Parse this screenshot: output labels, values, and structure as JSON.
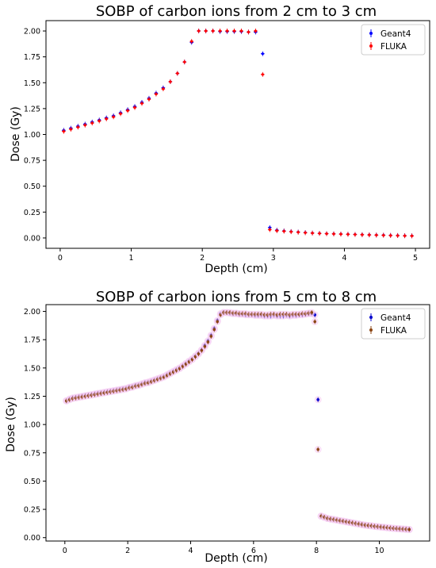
{
  "chart_data": [
    {
      "type": "scatter",
      "title": "SOBP of carbon ions from 2 cm to 3 cm",
      "xlabel": "Depth (cm)",
      "ylabel": "Dose (Gy)",
      "xlim": [
        -0.2,
        5.2
      ],
      "ylim": [
        -0.1,
        2.1
      ],
      "xticks": [
        "0",
        "1",
        "2",
        "3",
        "4",
        "5"
      ],
      "yticks": [
        "0.00",
        "0.25",
        "0.50",
        "0.75",
        "1.00",
        "1.25",
        "1.50",
        "1.75",
        "2.00"
      ],
      "legend_position": "top-right",
      "grid": false,
      "series": [
        {
          "name": "Geant4",
          "color": "#0000ff",
          "x": [
            0.05,
            0.15,
            0.25,
            0.35,
            0.45,
            0.55,
            0.65,
            0.75,
            0.85,
            0.95,
            1.05,
            1.15,
            1.25,
            1.35,
            1.45,
            1.55,
            1.65,
            1.75,
            1.85,
            1.95,
            2.05,
            2.15,
            2.25,
            2.35,
            2.45,
            2.55,
            2.65,
            2.75,
            2.85,
            2.95,
            3.05,
            3.15,
            3.25,
            3.35,
            3.45,
            3.55,
            3.65,
            3.75,
            3.85,
            3.95,
            4.05,
            4.15,
            4.25,
            4.35,
            4.45,
            4.55,
            4.65,
            4.75,
            4.85,
            4.95
          ],
          "y": [
            1.04,
            1.06,
            1.08,
            1.1,
            1.12,
            1.14,
            1.16,
            1.18,
            1.21,
            1.24,
            1.27,
            1.31,
            1.35,
            1.4,
            1.45,
            1.51,
            1.59,
            1.7,
            1.89,
            2.0,
            2.0,
            2.0,
            1.995,
            1.995,
            1.995,
            1.995,
            1.99,
            1.99,
            1.78,
            0.1,
            0.075,
            0.068,
            0.062,
            0.057,
            0.052,
            0.048,
            0.045,
            0.042,
            0.04,
            0.038,
            0.036,
            0.034,
            0.032,
            0.03,
            0.028,
            0.027,
            0.025,
            0.024,
            0.022,
            0.021
          ]
        },
        {
          "name": "FLUKA",
          "color": "#ff0000",
          "x": [
            0.05,
            0.15,
            0.25,
            0.35,
            0.45,
            0.55,
            0.65,
            0.75,
            0.85,
            0.95,
            1.05,
            1.15,
            1.25,
            1.35,
            1.45,
            1.55,
            1.65,
            1.75,
            1.85,
            1.95,
            2.05,
            2.15,
            2.25,
            2.35,
            2.45,
            2.55,
            2.65,
            2.75,
            2.85,
            2.95,
            3.05,
            3.15,
            3.25,
            3.35,
            3.45,
            3.55,
            3.65,
            3.75,
            3.85,
            3.95,
            4.05,
            4.15,
            4.25,
            4.35,
            4.45,
            4.55,
            4.65,
            4.75,
            4.85,
            4.95
          ],
          "y": [
            1.03,
            1.05,
            1.07,
            1.09,
            1.11,
            1.13,
            1.15,
            1.17,
            1.2,
            1.23,
            1.26,
            1.3,
            1.34,
            1.39,
            1.44,
            1.51,
            1.59,
            1.7,
            1.9,
            2.0,
            2.0,
            2.0,
            2.0,
            2.0,
            2.0,
            2.0,
            1.99,
            2.0,
            1.58,
            0.08,
            0.07,
            0.065,
            0.06,
            0.055,
            0.05,
            0.047,
            0.044,
            0.041,
            0.039,
            0.037,
            0.035,
            0.033,
            0.031,
            0.029,
            0.027,
            0.026,
            0.024,
            0.023,
            0.021,
            0.02
          ]
        }
      ]
    },
    {
      "type": "scatter",
      "title": "SOBP of carbon ions from 5 cm to 8 cm",
      "xlabel": "Depth (cm)",
      "ylabel": "Dose (Gy)",
      "xlim": [
        -0.6,
        11.6
      ],
      "ylim": [
        -0.03,
        2.06
      ],
      "xticks": [
        "0",
        "2",
        "4",
        "6",
        "8",
        "10"
      ],
      "yticks": [
        "0.00",
        "0.25",
        "0.50",
        "0.75",
        "1.00",
        "1.25",
        "1.50",
        "1.75",
        "2.00"
      ],
      "legend_position": "top-right",
      "grid": false,
      "series": [
        {
          "name": "Geant4",
          "color": "#0000cc",
          "x": [
            0.05,
            0.15,
            0.25,
            0.35,
            0.45,
            0.55,
            0.65,
            0.75,
            0.85,
            0.95,
            1.05,
            1.15,
            1.25,
            1.35,
            1.45,
            1.55,
            1.65,
            1.75,
            1.85,
            1.95,
            2.05,
            2.15,
            2.25,
            2.35,
            2.45,
            2.55,
            2.65,
            2.75,
            2.85,
            2.95,
            3.05,
            3.15,
            3.25,
            3.35,
            3.45,
            3.55,
            3.65,
            3.75,
            3.85,
            3.95,
            4.05,
            4.15,
            4.25,
            4.35,
            4.45,
            4.55,
            4.65,
            4.75,
            4.85,
            4.95,
            5.05,
            5.15,
            5.25,
            5.35,
            5.45,
            5.55,
            5.65,
            5.75,
            5.85,
            5.95,
            6.05,
            6.15,
            6.25,
            6.35,
            6.45,
            6.55,
            6.65,
            6.75,
            6.85,
            6.95,
            7.05,
            7.15,
            7.25,
            7.35,
            7.45,
            7.55,
            7.65,
            7.75,
            7.85,
            7.95,
            8.05,
            8.15,
            8.25,
            8.35,
            8.45,
            8.55,
            8.65,
            8.75,
            8.85,
            8.95,
            9.05,
            9.15,
            9.25,
            9.35,
            9.45,
            9.55,
            9.65,
            9.75,
            9.85,
            9.95,
            10.05,
            10.15,
            10.25,
            10.35,
            10.45,
            10.55,
            10.65,
            10.75,
            10.85,
            10.95
          ],
          "y": [
            1.21,
            1.225,
            1.235,
            1.24,
            1.245,
            1.25,
            1.255,
            1.26,
            1.265,
            1.27,
            1.275,
            1.28,
            1.285,
            1.29,
            1.295,
            1.3,
            1.305,
            1.31,
            1.315,
            1.32,
            1.33,
            1.335,
            1.345,
            1.35,
            1.36,
            1.37,
            1.375,
            1.385,
            1.395,
            1.405,
            1.415,
            1.425,
            1.44,
            1.455,
            1.47,
            1.485,
            1.5,
            1.52,
            1.54,
            1.56,
            1.58,
            1.605,
            1.63,
            1.66,
            1.7,
            1.74,
            1.79,
            1.85,
            1.92,
            1.98,
            1.99,
            1.99,
            1.985,
            1.98,
            1.98,
            1.975,
            1.975,
            1.97,
            1.97,
            1.97,
            1.965,
            1.965,
            1.965,
            1.96,
            1.96,
            1.96,
            1.965,
            1.96,
            1.96,
            1.96,
            1.965,
            1.96,
            1.965,
            1.965,
            1.97,
            1.97,
            1.975,
            1.98,
            1.98,
            1.97,
            1.22,
            0.19,
            0.18,
            0.17,
            0.165,
            0.16,
            0.155,
            0.15,
            0.145,
            0.14,
            0.135,
            0.13,
            0.125,
            0.12,
            0.115,
            0.11,
            0.107,
            0.104,
            0.1,
            0.097,
            0.094,
            0.091,
            0.088,
            0.085,
            0.082,
            0.08,
            0.078,
            0.076,
            0.074,
            0.072
          ]
        },
        {
          "name": "FLUKA",
          "color": "#8b4513",
          "x": [
            0.05,
            0.15,
            0.25,
            0.35,
            0.45,
            0.55,
            0.65,
            0.75,
            0.85,
            0.95,
            1.05,
            1.15,
            1.25,
            1.35,
            1.45,
            1.55,
            1.65,
            1.75,
            1.85,
            1.95,
            2.05,
            2.15,
            2.25,
            2.35,
            2.45,
            2.55,
            2.65,
            2.75,
            2.85,
            2.95,
            3.05,
            3.15,
            3.25,
            3.35,
            3.45,
            3.55,
            3.65,
            3.75,
            3.85,
            3.95,
            4.05,
            4.15,
            4.25,
            4.35,
            4.45,
            4.55,
            4.65,
            4.75,
            4.85,
            4.95,
            5.05,
            5.15,
            5.25,
            5.35,
            5.45,
            5.55,
            5.65,
            5.75,
            5.85,
            5.95,
            6.05,
            6.15,
            6.25,
            6.35,
            6.45,
            6.55,
            6.65,
            6.75,
            6.85,
            6.95,
            7.05,
            7.15,
            7.25,
            7.35,
            7.45,
            7.55,
            7.65,
            7.75,
            7.85,
            7.95,
            8.05,
            8.15,
            8.25,
            8.35,
            8.45,
            8.55,
            8.65,
            8.75,
            8.85,
            8.95,
            9.05,
            9.15,
            9.25,
            9.35,
            9.45,
            9.55,
            9.65,
            9.75,
            9.85,
            9.95,
            10.05,
            10.15,
            10.25,
            10.35,
            10.45,
            10.55,
            10.65,
            10.75,
            10.85,
            10.95
          ],
          "y": [
            1.21,
            1.22,
            1.23,
            1.235,
            1.24,
            1.245,
            1.25,
            1.255,
            1.26,
            1.265,
            1.27,
            1.275,
            1.28,
            1.285,
            1.29,
            1.295,
            1.3,
            1.305,
            1.31,
            1.315,
            1.325,
            1.33,
            1.34,
            1.345,
            1.355,
            1.365,
            1.37,
            1.38,
            1.39,
            1.4,
            1.41,
            1.42,
            1.435,
            1.45,
            1.465,
            1.48,
            1.495,
            1.515,
            1.535,
            1.555,
            1.575,
            1.6,
            1.625,
            1.655,
            1.69,
            1.73,
            1.78,
            1.84,
            1.91,
            1.97,
            1.99,
            1.99,
            1.99,
            1.985,
            1.985,
            1.98,
            1.98,
            1.98,
            1.975,
            1.975,
            1.975,
            1.975,
            1.975,
            1.97,
            1.97,
            1.975,
            1.975,
            1.97,
            1.975,
            1.975,
            1.975,
            1.97,
            1.975,
            1.975,
            1.975,
            1.98,
            1.98,
            1.985,
            1.99,
            1.91,
            0.78,
            0.19,
            0.18,
            0.17,
            0.165,
            0.16,
            0.155,
            0.15,
            0.145,
            0.14,
            0.135,
            0.13,
            0.125,
            0.12,
            0.115,
            0.11,
            0.107,
            0.104,
            0.1,
            0.097,
            0.094,
            0.091,
            0.088,
            0.085,
            0.082,
            0.08,
            0.078,
            0.076,
            0.074,
            0.072
          ]
        }
      ]
    }
  ]
}
